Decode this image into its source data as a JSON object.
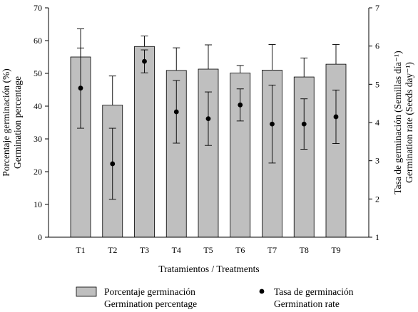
{
  "chart_data": {
    "type": "bar",
    "categories": [
      "T1",
      "T2",
      "T3",
      "T4",
      "T5",
      "T6",
      "T7",
      "T8",
      "T9"
    ],
    "series": [
      {
        "name": "Porcentaje germinación Germination percentage",
        "kind": "bar",
        "axis": "left",
        "values": [
          55.0,
          40.3,
          58.2,
          50.9,
          51.3,
          50.1,
          51.0,
          48.9,
          52.8
        ],
        "error": [
          8.6,
          8.9,
          3.2,
          6.9,
          7.4,
          2.3,
          7.8,
          5.8,
          6.0
        ],
        "color": "#bfbfbf"
      },
      {
        "name": "Tasa de germinación Germination rate",
        "kind": "scatter",
        "axis": "right",
        "values": [
          4.9,
          2.92,
          5.6,
          4.28,
          4.1,
          4.46,
          3.96,
          3.96,
          4.15
        ],
        "error": [
          1.05,
          0.93,
          0.3,
          0.82,
          0.7,
          0.42,
          1.02,
          0.66,
          0.7
        ],
        "color": "#000000"
      }
    ],
    "xlabel": "Tratamientos / Treatments",
    "ylabel_left": [
      "Porcentaje germinación (%)",
      "Germination percentage"
    ],
    "ylabel_right": [
      "Tasa de germinación (Semillas día⁻¹)",
      "Germination rate (Seeds day⁻¹)"
    ],
    "ylim_left": [
      0,
      70
    ],
    "yticks_left": [
      0,
      10,
      20,
      30,
      40,
      50,
      60,
      70
    ],
    "ylim_right": [
      1,
      7
    ],
    "yticks_right": [
      1,
      2,
      3,
      4,
      5,
      6,
      7
    ],
    "grid": false,
    "legend": {
      "placement": "bottom",
      "items": [
        {
          "symbol": "bar",
          "lines": [
            "Porcentaje germinación",
            "Germination percentage"
          ]
        },
        {
          "symbol": "dot",
          "lines": [
            "Tasa de germinación",
            "Germination rate"
          ]
        }
      ]
    }
  }
}
